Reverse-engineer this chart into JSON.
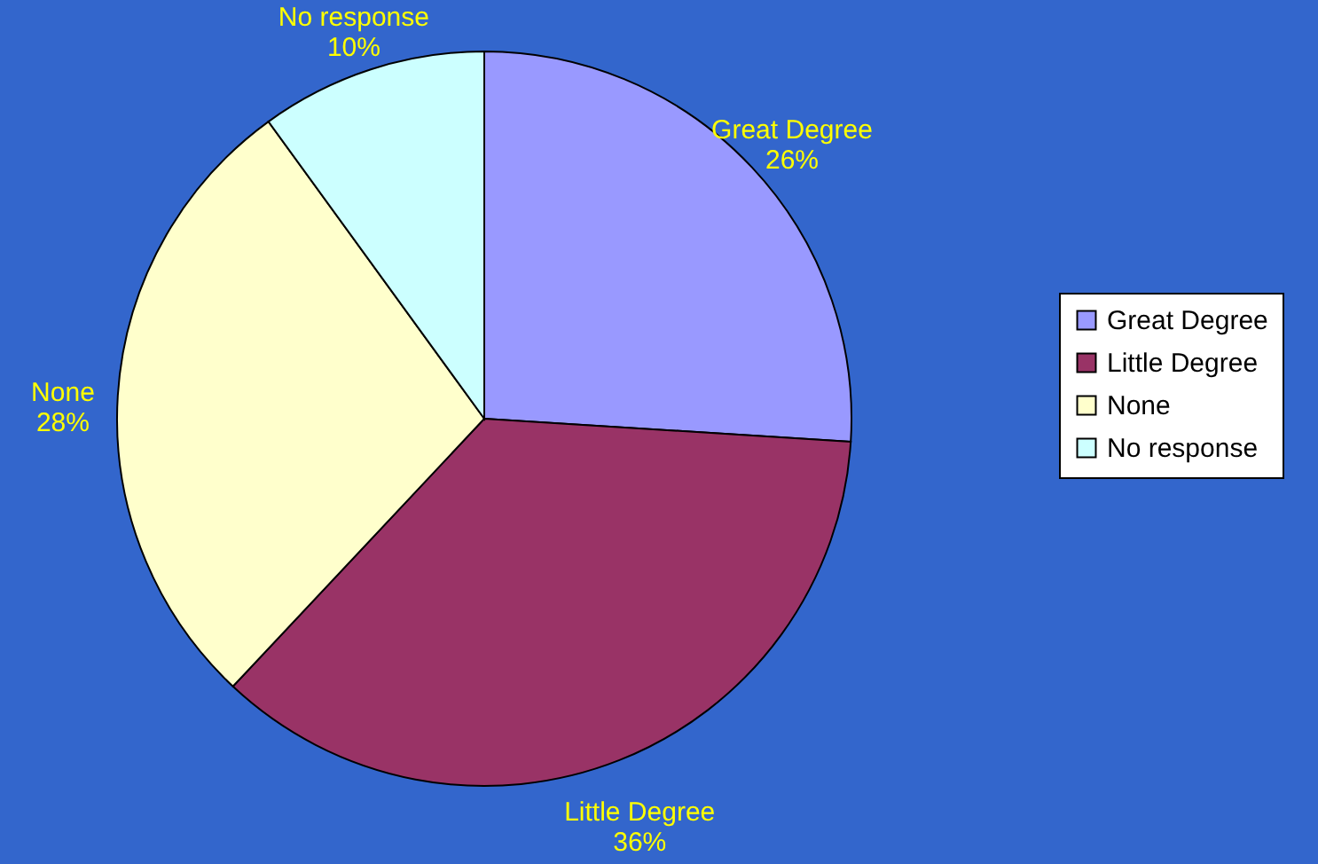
{
  "chart_data": {
    "type": "pie",
    "categories": [
      "Great Degree",
      "Little Degree",
      "None",
      "No response"
    ],
    "values": [
      26,
      36,
      28,
      10
    ],
    "colors": [
      "#9999ff",
      "#993366",
      "#ffffcc",
      "#ccffff"
    ],
    "value_labels": [
      "26%",
      "36%",
      "28%",
      "10%"
    ],
    "legend": "right"
  }
}
